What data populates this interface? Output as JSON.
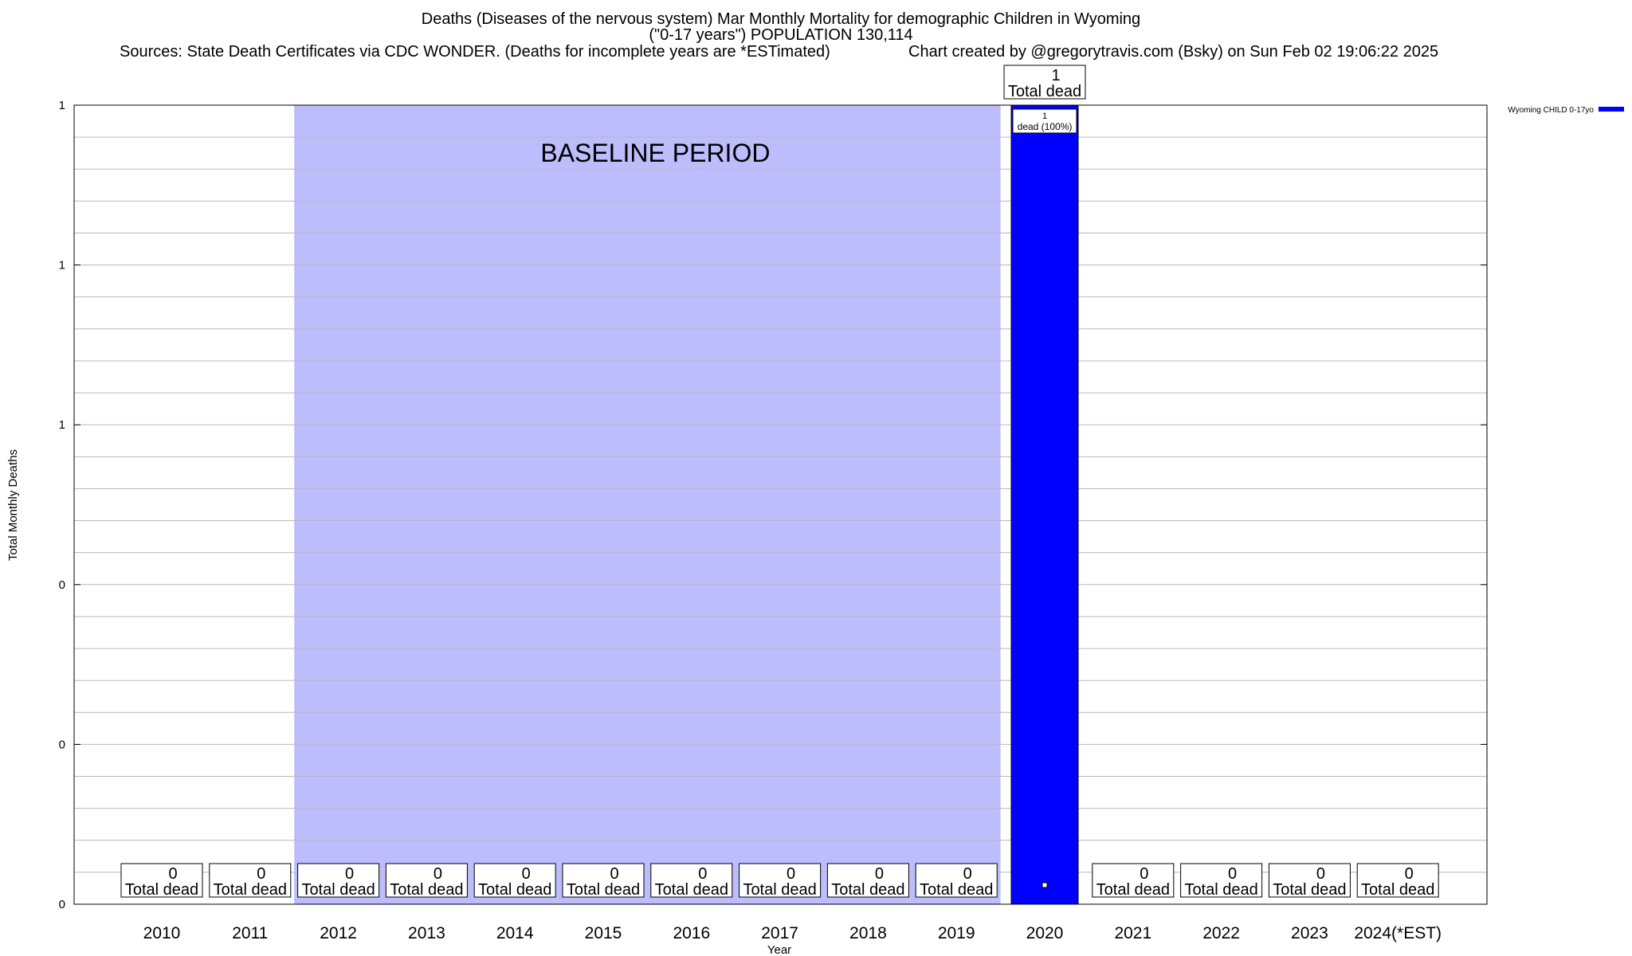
{
  "header": {
    "title_line1": "Deaths (Diseases of the nervous system) Mar Monthly Mortality for demographic Children in Wyoming",
    "title_line2": "(\"0-17 years\") POPULATION 130,114",
    "sources": "Sources: State Death Certificates via CDC WONDER. (Deaths for incomplete years are *ESTimated)",
    "credit": "Chart created by @gregorytravis.com (Bsky) on Sun Feb 02 19:06:22 2025"
  },
  "chart_data": {
    "type": "bar",
    "xlabel": "Year",
    "ylabel": "Total Monthly Deaths",
    "categories": [
      "2010",
      "2011",
      "2012",
      "2013",
      "2014",
      "2015",
      "2016",
      "2017",
      "2018",
      "2019",
      "2020",
      "2021",
      "2022",
      "2023",
      "2024(*EST)"
    ],
    "series": [
      {
        "name": "Wyoming CHILD 0-17yo",
        "color": "#0000ff",
        "values": [
          0,
          0,
          0,
          0,
          0,
          0,
          0,
          0,
          0,
          0,
          1,
          0,
          0,
          0,
          0
        ]
      }
    ],
    "ylim": [
      0,
      1
    ],
    "yticks": [
      {
        "value": 0,
        "label": "0"
      },
      {
        "value": 0.2,
        "label": "0"
      },
      {
        "value": 0.4,
        "label": "0"
      },
      {
        "value": 0.6,
        "label": "1"
      },
      {
        "value": 0.8,
        "label": "1"
      },
      {
        "value": 1.0,
        "label": "1"
      }
    ],
    "total_label_value": "Total dead",
    "inner_label": {
      "category": "2020",
      "line1": "1",
      "line2": "dead (100%)"
    },
    "baseline": {
      "label": "BASELINE PERIOD",
      "from": "2012",
      "to": "2019",
      "color": "#bdbdfd"
    },
    "grid": true,
    "legend_position": "top-right"
  }
}
